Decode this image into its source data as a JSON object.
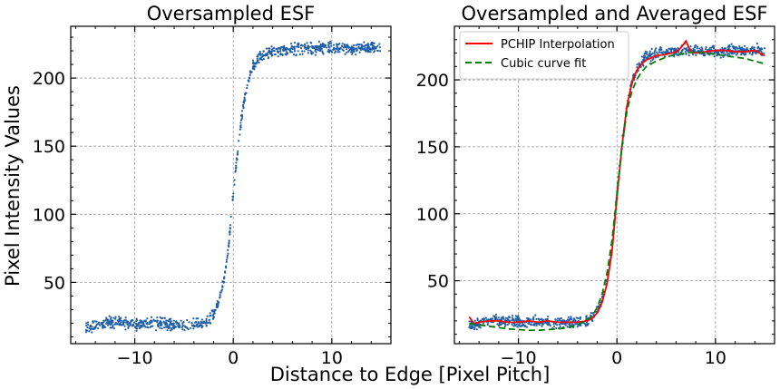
{
  "figure": {
    "xlabel": "Distance to Edge [Pixel Pitch]",
    "ylabel": "Pixel Intensity Values"
  },
  "chart_data": [
    {
      "type": "scatter",
      "title": "Oversampled ESF",
      "xlim": [
        -16.5,
        16
      ],
      "ylim": [
        5,
        238
      ],
      "xticks": [
        -10,
        0,
        10
      ],
      "xtick_labels": [
        "−10",
        "0",
        "10"
      ],
      "yticks": [
        50,
        100,
        150,
        200
      ],
      "ytick_labels": [
        "50",
        "100",
        "150",
        "200"
      ],
      "grid": true,
      "legend": null,
      "series": [
        {
          "color": "#1f5fa8",
          "kind": "points",
          "x": [
            -15,
            -14,
            -13,
            -12,
            -11,
            -10,
            -9,
            -8,
            -7,
            -6,
            -5,
            -4,
            -3,
            -2.5,
            -2,
            -1.5,
            -1,
            -0.5,
            0,
            0.5,
            1,
            1.5,
            2,
            2.5,
            3,
            4,
            5,
            6,
            7,
            8,
            9,
            10,
            11,
            12,
            13,
            14,
            15
          ],
          "y": [
            17,
            18,
            20,
            21,
            20,
            19,
            19,
            20,
            19,
            19,
            18,
            19,
            20,
            22,
            27,
            35,
            50,
            75,
            115,
            150,
            180,
            198,
            208,
            214,
            217,
            219,
            221,
            221,
            222,
            222,
            222,
            222,
            222,
            222,
            222,
            222,
            222
          ]
        }
      ]
    },
    {
      "type": "line",
      "title": "Oversampled and Averaged ESF",
      "xlim": [
        -16.5,
        16
      ],
      "ylim": [
        3,
        240
      ],
      "xticks": [
        -10,
        0,
        10
      ],
      "xtick_labels": [
        "−10",
        "0",
        "10"
      ],
      "yticks": [
        50,
        100,
        150,
        200
      ],
      "ytick_labels": [
        "50",
        "100",
        "150",
        "200"
      ],
      "grid": true,
      "legend": "top-left",
      "series": [
        {
          "color": "#1f5fa8",
          "kind": "points",
          "x": [
            -15,
            -14,
            -13,
            -12,
            -11,
            -10,
            -9,
            -8,
            -7,
            -6,
            -5,
            -4,
            -3,
            -2.5,
            -2,
            -1.5,
            -1,
            -0.5,
            0,
            0.5,
            1,
            1.5,
            2,
            2.5,
            3,
            4,
            5,
            6,
            7,
            8,
            9,
            10,
            11,
            12,
            13,
            14,
            15
          ],
          "y": [
            17,
            18,
            20,
            21,
            20,
            19,
            19,
            20,
            19,
            19,
            18,
            19,
            20,
            22,
            27,
            35,
            50,
            75,
            115,
            150,
            180,
            198,
            208,
            214,
            217,
            219,
            221,
            221,
            222,
            222,
            222,
            222,
            222,
            222,
            222,
            222,
            222
          ]
        },
        {
          "name": "PCHIP Interpolation",
          "color": "#ff0000",
          "kind": "line",
          "dash": "",
          "x": [
            -15,
            -14.5,
            -14,
            -13,
            -12,
            -11,
            -10,
            -9,
            -8,
            -7,
            -6,
            -5,
            -4,
            -3,
            -2.5,
            -2,
            -1.5,
            -1,
            -0.5,
            0,
            0.5,
            1,
            1.5,
            2,
            2.5,
            3,
            4,
            5,
            6,
            6.5,
            7,
            7.5,
            8,
            9,
            10,
            11,
            12,
            13,
            14,
            15
          ],
          "y": [
            23,
            18,
            19,
            20,
            20,
            19,
            19,
            20,
            19,
            20,
            19,
            19,
            19,
            20,
            22,
            26,
            34,
            48,
            72,
            112,
            150,
            180,
            197,
            207,
            212,
            215,
            218,
            219,
            221,
            224,
            229,
            221,
            220,
            221,
            222,
            222,
            221,
            221,
            222,
            218
          ]
        },
        {
          "name": "Cubic curve fit",
          "color": "#008000",
          "kind": "line",
          "dash": "7,4",
          "x": [
            -15,
            -14,
            -13,
            -12,
            -11,
            -10,
            -9,
            -8,
            -7,
            -6,
            -5,
            -4,
            -3,
            -2.5,
            -2,
            -1.5,
            -1,
            -0.5,
            0,
            0.5,
            1,
            1.5,
            2,
            2.5,
            3,
            4,
            5,
            6,
            7,
            8,
            9,
            10,
            11,
            12,
            13,
            14,
            15
          ],
          "y": [
            18,
            17,
            16,
            15,
            14,
            13.5,
            13,
            13,
            13.5,
            14,
            15,
            17,
            21,
            24,
            30,
            40,
            56,
            80,
            115,
            150,
            176,
            191,
            200,
            206,
            210,
            214,
            217,
            219,
            220,
            221,
            220,
            219,
            218,
            217,
            216,
            214,
            212
          ]
        }
      ]
    }
  ]
}
